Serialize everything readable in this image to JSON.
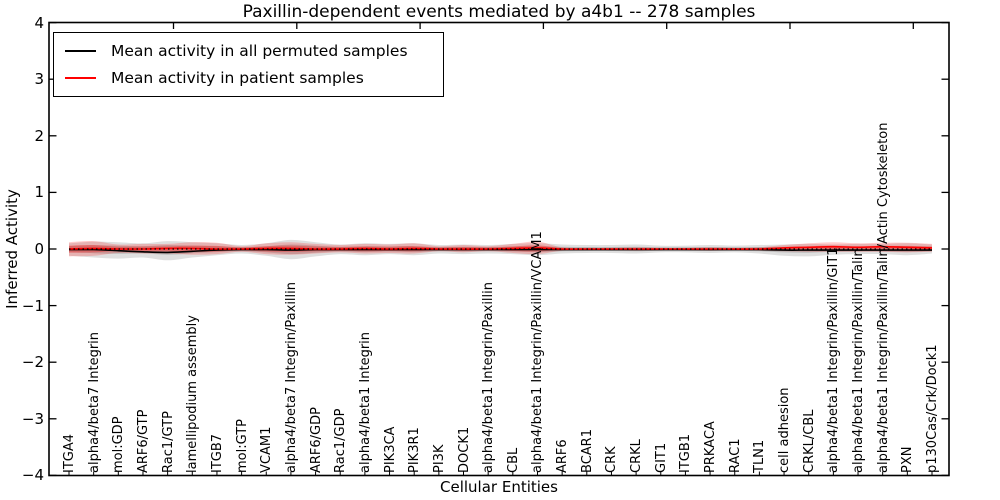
{
  "title": "Paxillin-dependent events mediated by a4b1 -- 278 samples",
  "axes": {
    "ylabel": "Inferred Activity",
    "xlabel": "Cellular Entities",
    "yticks": [
      4,
      3,
      2,
      1,
      0,
      -1,
      -2,
      -3,
      -4
    ]
  },
  "legend": {
    "items": [
      {
        "label": "Mean activity in all permuted samples",
        "color": "#000000"
      },
      {
        "label": "Mean activity in patient samples",
        "color": "#ff0000"
      }
    ]
  },
  "chart_data": {
    "type": "line",
    "title": "Paxillin-dependent events mediated by a4b1 -- 278 samples",
    "xlabel": "Cellular Entities",
    "ylabel": "Inferred Activity",
    "ylim": [
      -4,
      4
    ],
    "grid": false,
    "legend_position": "upper left",
    "zero_line": {
      "style": "dotted",
      "color": "#000000",
      "y": 0
    },
    "categories": [
      "ITGA4",
      "alpha4/beta7 Integrin",
      "mol:GDP",
      "ARF6/GTP",
      "Rac1/GTP",
      "lamellipodium assembly",
      "ITGB7",
      "mol:GTP",
      "VCAM1",
      "alpha4/beta7 Integrin/Paxillin",
      "ARF6/GDP",
      "Rac1/GDP",
      "alpha4/beta1 Integrin",
      "PIK3CA",
      "PIK3R1",
      "PI3K",
      "DOCK1",
      "alpha4/beta1 Integrin/Paxillin",
      "CBL",
      "alpha4/beta1 Integrin/Paxillin/VCAM1",
      "ARF6",
      "BCAR1",
      "CRK",
      "CRKL",
      "GIT1",
      "ITGB1",
      "PRKACA",
      "RAC1",
      "TLN1",
      "cell adhesion",
      "CRKL/CBL",
      "alpha4/beta1 Integrin/Paxillin/GIT1",
      "alpha4/beta1 Integrin/Paxillin/Talin",
      "alpha4/beta1 Integrin/Paxillin/Talin/Actin Cytoskeleton",
      "PXN",
      "p130Cas/Crk/Dock1"
    ],
    "series": [
      {
        "name": "Mean activity in all permuted samples",
        "color": "#000000",
        "band_color": "rgba(110,110,110,0.22)",
        "band_core_color": "rgba(110,110,110,0.30)",
        "values": [
          -0.01,
          -0.01,
          -0.03,
          -0.05,
          -0.06,
          -0.04,
          -0.02,
          -0.01,
          -0.01,
          -0.02,
          -0.01,
          -0.01,
          -0.01,
          -0.01,
          -0.01,
          -0.01,
          -0.01,
          -0.01,
          -0.01,
          -0.01,
          -0.01,
          -0.01,
          -0.01,
          -0.01,
          -0.01,
          -0.01,
          -0.01,
          -0.01,
          -0.01,
          -0.02,
          -0.02,
          -0.02,
          -0.02,
          -0.02,
          -0.02,
          -0.02
        ],
        "band_upper": [
          0.1,
          0.13,
          0.12,
          0.1,
          0.14,
          0.12,
          0.1,
          0.07,
          0.1,
          0.16,
          0.12,
          0.08,
          0.1,
          0.09,
          0.1,
          0.07,
          0.08,
          0.07,
          0.09,
          0.1,
          0.08,
          0.07,
          0.07,
          0.08,
          0.06,
          0.06,
          0.07,
          0.06,
          0.07,
          0.08,
          0.09,
          0.08,
          0.09,
          0.09,
          0.1,
          0.08
        ],
        "band_lower": [
          -0.12,
          -0.15,
          -0.17,
          -0.15,
          -0.2,
          -0.15,
          -0.11,
          -0.08,
          -0.12,
          -0.18,
          -0.13,
          -0.09,
          -0.11,
          -0.09,
          -0.11,
          -0.08,
          -0.09,
          -0.08,
          -0.09,
          -0.11,
          -0.08,
          -0.07,
          -0.07,
          -0.08,
          -0.06,
          -0.06,
          -0.07,
          -0.06,
          -0.08,
          -0.12,
          -0.13,
          -0.1,
          -0.09,
          -0.09,
          -0.11,
          -0.08
        ]
      },
      {
        "name": "Mean activity in patient samples",
        "color": "#ff0000",
        "band_color": "rgba(255,0,0,0.20)",
        "band_core_color": "rgba(255,0,0,0.30)",
        "values": [
          0,
          0.01,
          0,
          0,
          0.01,
          0.01,
          0,
          0,
          0.01,
          0.01,
          0,
          0,
          0.01,
          0,
          0.01,
          0,
          0,
          0,
          0.01,
          0.02,
          0,
          0,
          0,
          0,
          0,
          0,
          0,
          0,
          0,
          0.02,
          0.03,
          0.04,
          0.03,
          0.04,
          0.03,
          0.02
        ],
        "band_upper": [
          0.12,
          0.14,
          0.08,
          0.09,
          0.09,
          0.12,
          0.11,
          0.05,
          0.1,
          0.12,
          0.09,
          0.07,
          0.09,
          0.08,
          0.1,
          0.05,
          0.07,
          0.05,
          0.09,
          0.13,
          0.03,
          0.02,
          0.02,
          0.03,
          0.02,
          0.02,
          0.03,
          0.02,
          0.03,
          0.07,
          0.1,
          0.12,
          0.1,
          0.11,
          0.11,
          0.09
        ],
        "band_lower": [
          -0.13,
          -0.12,
          -0.07,
          -0.08,
          -0.08,
          -0.1,
          -0.09,
          -0.05,
          -0.09,
          -0.1,
          -0.08,
          -0.06,
          -0.08,
          -0.07,
          -0.08,
          -0.04,
          -0.06,
          -0.04,
          -0.07,
          -0.09,
          -0.03,
          -0.02,
          -0.02,
          -0.03,
          -0.02,
          -0.02,
          -0.03,
          -0.02,
          -0.03,
          -0.04,
          -0.05,
          -0.05,
          -0.05,
          -0.05,
          -0.06,
          -0.05
        ]
      }
    ]
  }
}
